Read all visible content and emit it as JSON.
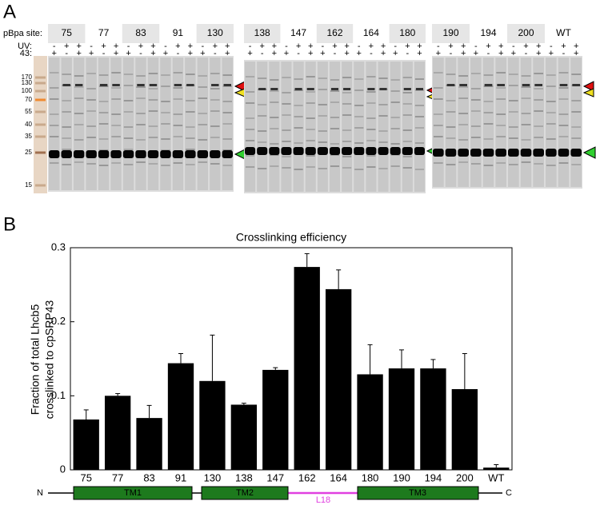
{
  "panel_a": {
    "label": "A",
    "site_header": "pBpa site:",
    "uv_header": "UV:",
    "p43_header": "43:",
    "sites": [
      {
        "site": "75",
        "uv": [
          "-",
          "+",
          "+"
        ],
        "p43": [
          "+",
          "-",
          "+"
        ]
      },
      {
        "site": "77",
        "uv": [
          "-",
          "+",
          "+"
        ],
        "p43": [
          "+",
          "-",
          "+"
        ]
      },
      {
        "site": "83",
        "uv": [
          "-",
          "+",
          "+"
        ],
        "p43": [
          "+",
          "-",
          "+"
        ]
      },
      {
        "site": "91",
        "uv": [
          "-",
          "+",
          "+"
        ],
        "p43": [
          "+",
          "-",
          "+"
        ]
      },
      {
        "site": "130",
        "uv": [
          "-",
          "+",
          "+"
        ],
        "p43": [
          "+",
          "-",
          "+"
        ]
      },
      {
        "site": "138",
        "uv": [
          "-",
          "+",
          "+"
        ],
        "p43": [
          "+",
          "-",
          "+"
        ]
      },
      {
        "site": "147",
        "uv": [
          "-",
          "+",
          "+"
        ],
        "p43": [
          "+",
          "-",
          "+"
        ]
      },
      {
        "site": "162",
        "uv": [
          "-",
          "+",
          "+"
        ],
        "p43": [
          "+",
          "-",
          "+"
        ]
      },
      {
        "site": "164",
        "uv": [
          "-",
          "+",
          "+"
        ],
        "p43": [
          "+",
          "-",
          "+"
        ]
      },
      {
        "site": "180",
        "uv": [
          "-",
          "+",
          "+"
        ],
        "p43": [
          "+",
          "-",
          "+"
        ]
      },
      {
        "site": "190",
        "uv": [
          "-",
          "+",
          "+"
        ],
        "p43": [
          "+",
          "-",
          "+"
        ]
      },
      {
        "site": "194",
        "uv": [
          "-",
          "+",
          "+"
        ],
        "p43": [
          "+",
          "-",
          "+"
        ]
      },
      {
        "site": "200",
        "uv": [
          "-",
          "+",
          "+"
        ],
        "p43": [
          "+",
          "-",
          "+"
        ]
      },
      {
        "site": "WT",
        "uv": [
          "-",
          "+",
          "+"
        ],
        "p43": [
          "+",
          "-",
          "+"
        ]
      }
    ],
    "markers": [
      "170",
      "130",
      "100",
      "70",
      "55",
      "40",
      "35",
      "25",
      "15"
    ]
  },
  "panel_b_label": "B",
  "chart_data": {
    "type": "bar",
    "title": "Crosslinking efficiency",
    "y_label": [
      "Fraction of total Lhcb5",
      "crosslinked to cpSRP43"
    ],
    "categories": [
      "75",
      "77",
      "83",
      "91",
      "130",
      "138",
      "147",
      "162",
      "164",
      "180",
      "190",
      "194",
      "200",
      "WT"
    ],
    "values": [
      0.068,
      0.1,
      0.07,
      0.144,
      0.12,
      0.088,
      0.135,
      0.274,
      0.244,
      0.129,
      0.137,
      0.137,
      0.109,
      0.003
    ],
    "errors": [
      0.013,
      0.003,
      0.017,
      0.013,
      0.062,
      0.002,
      0.003,
      0.018,
      0.026,
      0.04,
      0.025,
      0.012,
      0.048,
      0.004
    ],
    "color": "#000000",
    "ylim": [
      0,
      0.3
    ],
    "yticks": [
      0,
      0.1,
      0.2,
      0.3
    ]
  },
  "topology": {
    "n_term": "N",
    "c_term": "C",
    "segments": [
      "TM1",
      "TM2",
      "L18",
      "TM3"
    ]
  }
}
